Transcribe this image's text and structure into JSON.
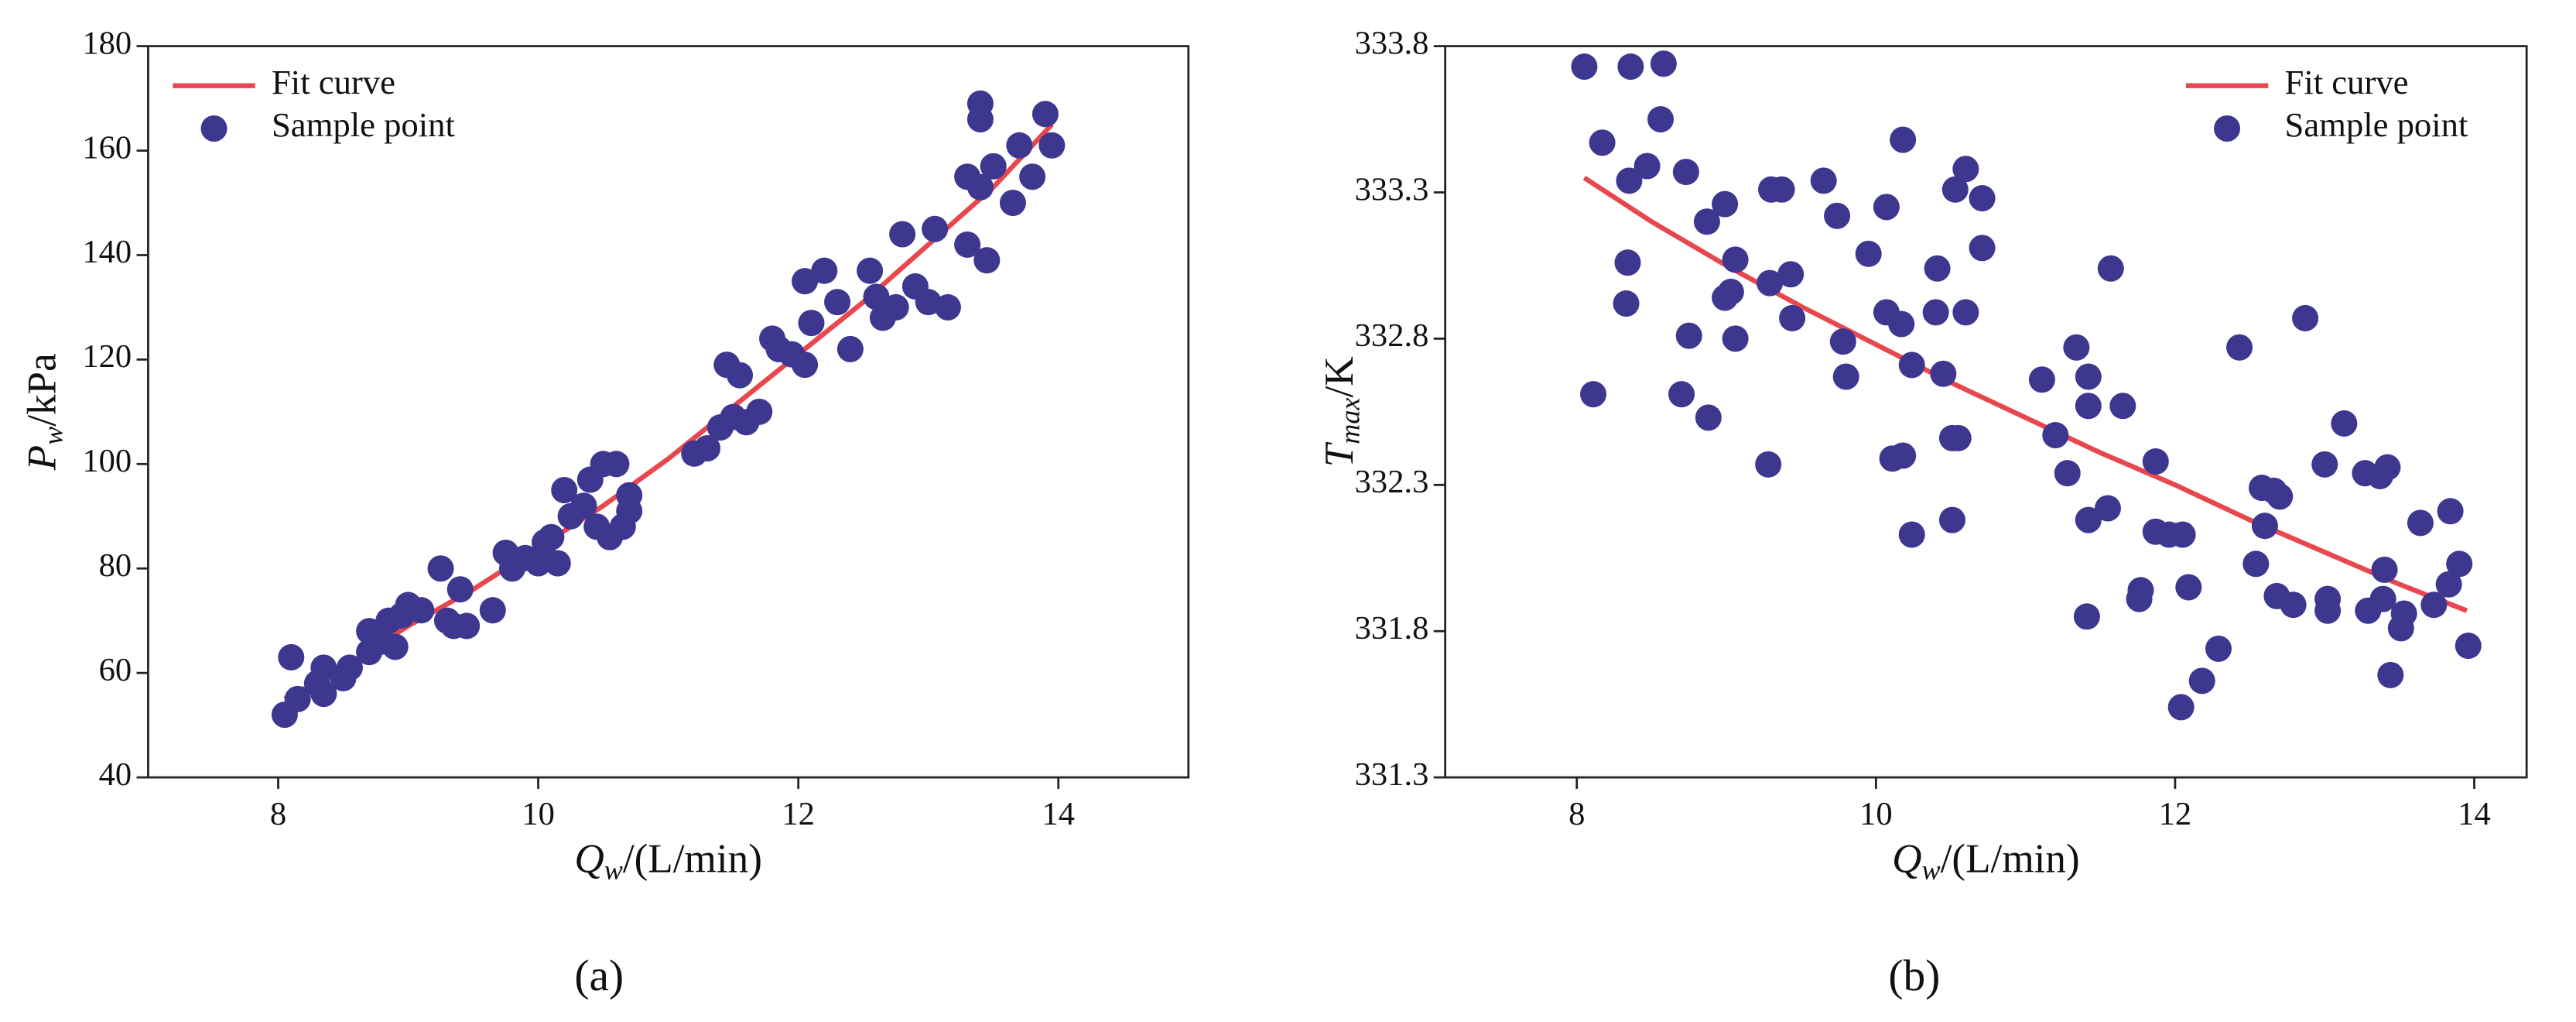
{
  "chart_data": [
    {
      "type": "scatter",
      "panel": "(a)",
      "xlabel": {
        "main": "Q",
        "sub": "w",
        "rest": "/(L/min)"
      },
      "ylabel": {
        "main": "P",
        "sub": "w",
        "rest": "/kPa"
      },
      "xlim": [
        7,
        15
      ],
      "xticks": [
        8,
        10,
        12,
        14
      ],
      "ylim": [
        40,
        180
      ],
      "yticks": [
        40,
        60,
        80,
        100,
        120,
        140,
        160,
        180
      ],
      "legend": "upper left",
      "series": [
        {
          "name": "Fit curve",
          "color": "#e8474d",
          "mode": "line",
          "x": [
            8.05,
            8.5,
            9,
            9.5,
            10,
            10.5,
            11,
            11.5,
            12,
            12.5,
            13,
            13.5,
            13.95
          ],
          "values": [
            55,
            61,
            69,
            76,
            84,
            92,
            101,
            111,
            121,
            131,
            142,
            153,
            165
          ]
        },
        {
          "name": "Sample point",
          "color": "#3d3790",
          "mode": "points",
          "x": [
            8.05,
            8.1,
            8.15,
            8.3,
            8.35,
            8.35,
            8.5,
            8.55,
            8.7,
            8.7,
            8.8,
            8.85,
            8.9,
            8.95,
            9,
            9.1,
            9.25,
            9.3,
            9.35,
            9.4,
            9.45,
            9.65,
            9.75,
            9.8,
            9.9,
            10,
            10.05,
            10.1,
            10.15,
            10.2,
            10.25,
            10.35,
            10.4,
            10.45,
            10.5,
            10.55,
            10.6,
            10.65,
            10.7,
            10.7,
            11.2,
            11.3,
            11.4,
            11.45,
            11.5,
            11.55,
            11.6,
            11.7,
            11.8,
            11.85,
            11.95,
            12.05,
            12.05,
            12.1,
            12.2,
            12.3,
            12.4,
            12.55,
            12.6,
            12.65,
            12.75,
            12.8,
            12.9,
            13,
            13.05,
            13.15,
            13.3,
            13.3,
            13.4,
            13.4,
            13.4,
            13.45,
            13.5,
            13.65,
            13.7,
            13.8,
            13.9,
            13.95
          ],
          "values": [
            52,
            63,
            55,
            58,
            61,
            56,
            59,
            61,
            68,
            64,
            66,
            70,
            65,
            71,
            73,
            72,
            80,
            70,
            69,
            76,
            69,
            72,
            83,
            80,
            82,
            81,
            85,
            86,
            81,
            95,
            90,
            92,
            97,
            88,
            100,
            86,
            100,
            88,
            91,
            94,
            102,
            103,
            107,
            119,
            109,
            117,
            108,
            110,
            124,
            122,
            121,
            119,
            135,
            127,
            137,
            131,
            122,
            137,
            132,
            128,
            130,
            144,
            134,
            131,
            145,
            130,
            142,
            155,
            166,
            169,
            153,
            139,
            157,
            150,
            161,
            155,
            167,
            161
          ]
        }
      ]
    },
    {
      "type": "scatter",
      "panel": "(b)",
      "xlabel": {
        "main": "Q",
        "sub": "w",
        "rest": "/(L/min)"
      },
      "ylabel": {
        "main": "T",
        "sub": "max",
        "rest": "/K"
      },
      "xlim": [
        7.12,
        14.35
      ],
      "xticks": [
        8,
        10,
        12,
        14
      ],
      "ylim": [
        331.3,
        333.8
      ],
      "yticks": [
        331.3,
        331.8,
        332.3,
        332.8,
        333.3,
        333.8
      ],
      "legend": "upper right",
      "series": [
        {
          "name": "Fit curve",
          "color": "#e8474d",
          "mode": "line",
          "x": [
            8.05,
            8.5,
            9,
            9.5,
            10,
            10.5,
            11,
            11.5,
            12,
            12.5,
            13,
            13.5,
            13.95
          ],
          "values": [
            333.35,
            333.2,
            333.05,
            332.91,
            332.78,
            332.65,
            332.53,
            332.41,
            332.3,
            332.18,
            332.07,
            331.96,
            331.87
          ]
        },
        {
          "name": "Sample point",
          "color": "#3d3790",
          "mode": "points",
          "x": [
            8.05,
            8.17,
            8.36,
            8.58,
            8.56,
            8.47,
            8.35,
            8.73,
            8.34,
            8.33,
            8.11,
            8.75,
            8.7,
            8.88,
            8.87,
            8.99,
            9.06,
            8.99,
            9.03,
            9.06,
            9.29,
            9.3,
            9.37,
            9.43,
            9.44,
            9.28,
            9.65,
            9.74,
            9.78,
            9.8,
            9.95,
            10.07,
            10.07,
            10.17,
            10.18,
            10.11,
            10.18,
            10.24,
            10.24,
            10.4,
            10.41,
            10.45,
            10.51,
            10.55,
            10.53,
            10.6,
            10.6,
            10.51,
            10.71,
            10.71,
            11.11,
            11.2,
            11.28,
            11.34,
            11.42,
            11.42,
            11.42,
            11.41,
            11.55,
            11.57,
            11.65,
            11.76,
            11.77,
            11.87,
            11.87,
            11.96,
            12.05,
            12.04,
            12.09,
            12.18,
            12.29,
            12.43,
            12.54,
            12.58,
            12.6,
            12.66,
            12.7,
            12.68,
            12.79,
            12.87,
            13,
            13.02,
            13.02,
            13.13,
            13.27,
            13.29,
            13.37,
            13.4,
            13.39,
            13.42,
            13.44,
            13.51,
            13.53,
            13.64,
            13.73,
            13.83,
            13.84,
            13.9,
            13.96
          ],
          "values": [
            333.73,
            333.47,
            333.73,
            333.74,
            333.55,
            333.39,
            333.34,
            333.37,
            333.06,
            332.92,
            332.61,
            332.81,
            332.61,
            332.53,
            333.2,
            333.26,
            333.07,
            332.94,
            332.96,
            332.8,
            332.99,
            333.31,
            333.31,
            333.02,
            332.87,
            332.37,
            333.34,
            333.22,
            332.79,
            332.67,
            333.09,
            333.25,
            332.89,
            332.85,
            333.48,
            332.39,
            332.4,
            332.71,
            332.13,
            332.89,
            333.04,
            332.68,
            332.46,
            332.46,
            333.31,
            333.38,
            332.89,
            332.18,
            333.28,
            333.11,
            332.66,
            332.47,
            332.34,
            332.77,
            332.67,
            332.57,
            332.18,
            331.85,
            332.22,
            333.04,
            332.57,
            331.91,
            331.94,
            332.38,
            332.14,
            332.13,
            332.13,
            331.54,
            331.95,
            331.63,
            331.74,
            332.77,
            332.03,
            332.29,
            332.16,
            332.28,
            332.26,
            331.92,
            331.89,
            332.87,
            332.37,
            331.91,
            331.87,
            332.51,
            332.34,
            331.87,
            332.33,
            332.01,
            331.91,
            332.36,
            331.65,
            331.81,
            331.86,
            332.17,
            331.89,
            331.96,
            332.21,
            332.03,
            331.75
          ]
        }
      ]
    }
  ]
}
